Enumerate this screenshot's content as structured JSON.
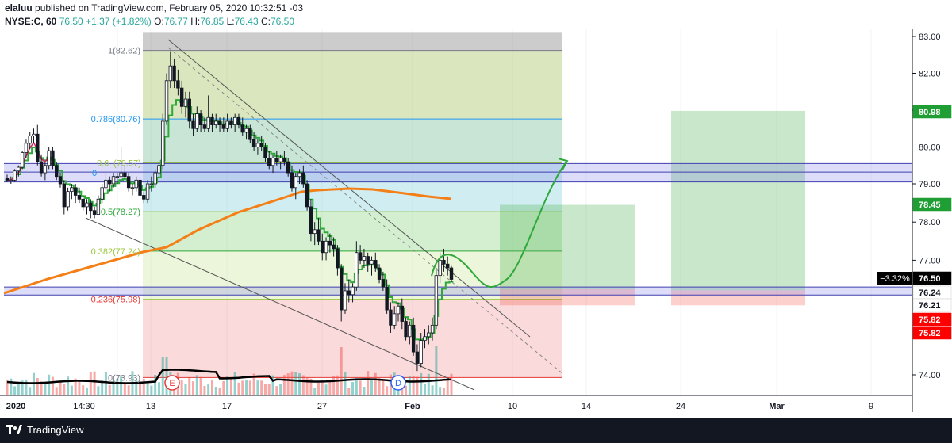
{
  "header": {
    "author": "elaluu",
    "published": " published on TradingView.com, February 05, 2020 10:32:51 -03",
    "symbol": "NYSE:C, 60",
    "last": "76.50",
    "change": "+1.37 (+1.82%)",
    "o_label": "O:",
    "o": "76.77",
    "h_label": "H:",
    "h": "76.85",
    "l_label": "L:",
    "l": "76.43",
    "c_label": "C:",
    "c": "76.50"
  },
  "footer": {
    "brand": "TradingView"
  },
  "colors": {
    "up": "#26a69a",
    "down": "#ef5350",
    "candle": "#131722",
    "ma_orange": "#f57f17",
    "ma_green": "#2ea83a",
    "volume_avg": "#000000"
  },
  "chart_data": {
    "type": "candlestick",
    "symbol": "NYSE:C",
    "interval": "60",
    "x_tick_labels": [
      "2020",
      "14:30",
      "13",
      "17",
      "27",
      "Feb",
      "10",
      "14",
      "24",
      "Mar",
      "9"
    ],
    "ylim": [
      73.4,
      83.1
    ],
    "y_tick_labels": [
      "83.00",
      "82.00",
      "81.00",
      "80.00",
      "79.00",
      "78.00",
      "77.00",
      "74.00"
    ],
    "price_tags": [
      {
        "text": "80.98",
        "value": 80.98,
        "color": "#1e9e33"
      },
      {
        "text": "78.45",
        "value": 78.45,
        "color": "#1e9e33"
      },
      {
        "text": "76.50",
        "value": 76.5,
        "color": "#000000"
      },
      {
        "text": "76.24",
        "value": 76.24,
        "color": "#ffffff"
      },
      {
        "text": "76.21",
        "value": 76.21,
        "color": "#ffffff"
      },
      {
        "text": "75.82",
        "value": 75.82,
        "color": "#ff0000"
      },
      {
        "text": "75.82",
        "value": 75.82,
        "color": "#ff0000"
      }
    ],
    "change_badge": "−3.32%",
    "fibonacci": [
      {
        "label": "1(82.62)",
        "value": 82.62
      },
      {
        "label": "0.786(80.76)",
        "value": 80.76
      },
      {
        "label": "0.5(78.27)",
        "value": 78.27
      },
      {
        "label": "0.382(77.24)",
        "value": 77.24
      },
      {
        "label": "0.236(75.98)",
        "value": 75.98
      },
      {
        "label": "0(73.93)",
        "value": 73.93
      }
    ],
    "fib_overlapped_labels": [
      "0.6",
      "(79.5",
      "7)",
      "0"
    ],
    "horizontal_bands": [
      [
        79.05,
        79.55
      ],
      [
        76.09,
        76.3
      ]
    ],
    "events": [
      "E",
      "D"
    ],
    "candles_ohlc": [
      [
        79.15,
        79.25,
        79.05,
        79.1
      ],
      [
        79.1,
        79.2,
        79.0,
        79.1
      ],
      [
        79.1,
        79.4,
        79.05,
        79.35
      ],
      [
        79.35,
        79.5,
        79.2,
        79.45
      ],
      [
        79.45,
        79.9,
        79.4,
        79.85
      ],
      [
        79.85,
        80.2,
        79.7,
        80.1
      ],
      [
        80.1,
        80.4,
        79.95,
        80.3
      ],
      [
        80.3,
        80.5,
        80.1,
        80.35
      ],
      [
        80.35,
        80.6,
        79.5,
        79.6
      ],
      [
        79.6,
        79.8,
        79.2,
        79.3
      ],
      [
        79.3,
        79.6,
        79.1,
        79.5
      ],
      [
        79.5,
        80.0,
        79.4,
        79.9
      ],
      [
        79.9,
        80.0,
        79.4,
        79.5
      ],
      [
        79.5,
        79.6,
        79.1,
        79.2
      ],
      [
        79.2,
        79.3,
        78.9,
        79.0
      ],
      [
        79.0,
        79.1,
        78.2,
        78.4
      ],
      [
        78.4,
        78.9,
        78.3,
        78.8
      ],
      [
        78.8,
        79.0,
        78.6,
        78.9
      ],
      [
        78.9,
        79.0,
        78.5,
        78.7
      ],
      [
        78.7,
        78.9,
        78.5,
        78.6
      ],
      [
        78.6,
        78.7,
        78.3,
        78.4
      ],
      [
        78.4,
        78.6,
        78.2,
        78.5
      ],
      [
        78.5,
        78.6,
        78.1,
        78.3
      ],
      [
        78.3,
        78.4,
        78.1,
        78.2
      ],
      [
        78.2,
        78.7,
        78.2,
        78.6
      ],
      [
        78.6,
        79.0,
        78.5,
        78.9
      ],
      [
        78.9,
        79.3,
        78.8,
        79.1
      ],
      [
        79.1,
        79.2,
        78.8,
        79.0
      ],
      [
        79.0,
        79.3,
        78.9,
        79.2
      ],
      [
        79.2,
        79.3,
        79.0,
        79.2
      ],
      [
        79.2,
        80.0,
        79.1,
        79.3
      ],
      [
        79.3,
        79.5,
        79.1,
        79.2
      ],
      [
        79.2,
        79.3,
        78.8,
        78.9
      ],
      [
        78.9,
        79.0,
        78.7,
        78.9
      ],
      [
        78.9,
        79.2,
        78.8,
        79.1
      ],
      [
        79.1,
        79.2,
        78.6,
        78.7
      ],
      [
        78.7,
        78.8,
        78.5,
        78.6
      ],
      [
        78.6,
        79.1,
        78.5,
        79.0
      ],
      [
        79.0,
        79.2,
        78.8,
        79.0
      ],
      [
        79.0,
        79.4,
        78.9,
        79.3
      ],
      [
        79.3,
        79.6,
        79.2,
        79.5
      ],
      [
        79.5,
        80.9,
        79.4,
        80.7
      ],
      [
        80.7,
        82.0,
        80.6,
        81.8
      ],
      [
        81.8,
        82.6,
        81.6,
        82.2
      ],
      [
        82.2,
        82.4,
        81.6,
        81.8
      ],
      [
        81.8,
        82.1,
        81.4,
        81.6
      ],
      [
        81.6,
        81.8,
        80.9,
        81.1
      ],
      [
        81.1,
        81.5,
        80.8,
        81.3
      ],
      [
        81.3,
        81.5,
        80.5,
        80.7
      ],
      [
        80.7,
        80.9,
        80.3,
        80.5
      ],
      [
        80.5,
        81.1,
        80.4,
        80.9
      ],
      [
        80.9,
        81.0,
        80.4,
        80.6
      ],
      [
        80.6,
        80.8,
        80.4,
        80.5
      ],
      [
        80.5,
        81.4,
        80.4,
        80.8
      ],
      [
        80.8,
        80.9,
        80.4,
        80.6
      ],
      [
        80.6,
        80.9,
        80.5,
        80.7
      ],
      [
        80.7,
        80.8,
        80.4,
        80.6
      ],
      [
        80.6,
        80.8,
        80.4,
        80.5
      ],
      [
        80.5,
        80.9,
        80.4,
        80.7
      ],
      [
        80.7,
        80.8,
        80.5,
        80.6
      ],
      [
        80.6,
        80.9,
        80.4,
        80.8
      ],
      [
        80.8,
        80.9,
        80.5,
        80.6
      ],
      [
        80.6,
        80.8,
        80.3,
        80.4
      ],
      [
        80.4,
        80.6,
        80.2,
        80.5
      ],
      [
        80.5,
        80.6,
        80.1,
        80.2
      ],
      [
        80.2,
        80.4,
        79.9,
        80.0
      ],
      [
        80.0,
        80.2,
        79.8,
        80.1
      ],
      [
        80.1,
        80.3,
        79.9,
        80.0
      ],
      [
        80.0,
        80.1,
        79.6,
        79.7
      ],
      [
        79.7,
        79.9,
        79.4,
        79.5
      ],
      [
        79.5,
        79.8,
        79.3,
        79.7
      ],
      [
        79.7,
        79.9,
        79.5,
        79.6
      ],
      [
        79.6,
        79.8,
        79.4,
        79.7
      ],
      [
        79.7,
        79.9,
        79.5,
        79.6
      ],
      [
        79.6,
        79.7,
        79.2,
        79.3
      ],
      [
        79.3,
        79.5,
        78.8,
        78.9
      ],
      [
        78.9,
        79.3,
        78.6,
        79.2
      ],
      [
        79.2,
        79.4,
        79.0,
        79.3
      ],
      [
        79.3,
        79.5,
        78.9,
        79.0
      ],
      [
        79.0,
        79.1,
        78.3,
        78.4
      ],
      [
        78.4,
        78.6,
        77.5,
        77.7
      ],
      [
        77.7,
        78.0,
        77.4,
        77.8
      ],
      [
        77.8,
        78.1,
        77.4,
        77.5
      ],
      [
        77.5,
        77.7,
        77.0,
        77.2
      ],
      [
        77.2,
        77.6,
        77.0,
        77.5
      ],
      [
        77.5,
        77.7,
        77.2,
        77.4
      ],
      [
        77.4,
        77.6,
        77.1,
        77.3
      ],
      [
        77.3,
        77.4,
        76.6,
        76.8
      ],
      [
        76.8,
        76.9,
        75.4,
        75.7
      ],
      [
        75.7,
        76.4,
        75.6,
        76.2
      ],
      [
        76.2,
        76.5,
        75.9,
        76.1
      ],
      [
        76.1,
        76.4,
        75.9,
        76.3
      ],
      [
        76.3,
        77.5,
        76.2,
        77.2
      ],
      [
        77.2,
        77.4,
        76.9,
        77.0
      ],
      [
        77.0,
        77.3,
        76.8,
        77.1
      ],
      [
        77.1,
        77.2,
        76.7,
        76.9
      ],
      [
        76.9,
        77.1,
        76.6,
        77.0
      ],
      [
        77.0,
        77.2,
        76.7,
        76.8
      ],
      [
        76.8,
        76.9,
        76.4,
        76.5
      ],
      [
        76.5,
        76.7,
        76.2,
        76.3
      ],
      [
        76.3,
        76.5,
        75.6,
        75.7
      ],
      [
        75.7,
        75.9,
        75.1,
        75.3
      ],
      [
        75.3,
        75.8,
        75.2,
        75.6
      ],
      [
        75.6,
        75.9,
        75.4,
        75.8
      ],
      [
        75.8,
        76.0,
        75.2,
        75.4
      ],
      [
        75.4,
        75.5,
        74.9,
        75.0
      ],
      [
        75.0,
        75.4,
        74.8,
        75.3
      ],
      [
        75.3,
        75.5,
        74.5,
        74.6
      ],
      [
        74.6,
        74.8,
        74.1,
        74.3
      ],
      [
        74.3,
        75.1,
        74.2,
        74.9
      ],
      [
        74.9,
        75.2,
        74.7,
        75.0
      ],
      [
        75.0,
        75.3,
        74.8,
        75.1
      ],
      [
        75.1,
        75.5,
        74.9,
        75.3
      ],
      [
        75.3,
        76.8,
        75.2,
        76.6
      ],
      [
        76.6,
        77.2,
        76.4,
        77.0
      ],
      [
        77.0,
        77.3,
        76.7,
        76.9
      ],
      [
        76.9,
        77.1,
        76.6,
        76.8
      ],
      [
        76.8,
        76.85,
        76.43,
        76.5
      ]
    ]
  },
  "drawings": {
    "target_arrow_to": 79.6,
    "projection_curve_low": 76.3
  }
}
